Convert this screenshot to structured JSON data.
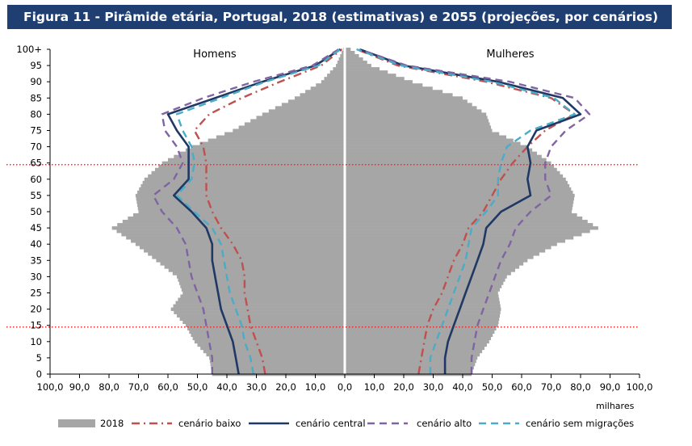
{
  "title": "Figura 11 - Pirâmide etária, Portugal, 2018 (estimativas) e 2055 (projeções, por cenários)",
  "chart_data": {
    "type": "population-pyramid",
    "x_unit": "milhares",
    "xlim": [
      0,
      100
    ],
    "x_tick_labels": [
      "100,0",
      "90,0",
      "80,0",
      "70,0",
      "60,0",
      "50,0",
      "40,0",
      "30,0",
      "20,0",
      "10,0",
      "0,0",
      "10,0",
      "20,0",
      "30,0",
      "40,0",
      "50,0",
      "60,0",
      "70,0",
      "80,0",
      "90,0",
      "100,0"
    ],
    "ylim": [
      0,
      100
    ],
    "y_tick_labels": [
      "0",
      "5",
      "10",
      "15",
      "20",
      "25",
      "30",
      "35",
      "40",
      "45",
      "50",
      "55",
      "60",
      "65",
      "70",
      "75",
      "80",
      "85",
      "90",
      "95",
      "100+"
    ],
    "panel_labels": {
      "left": "Homens",
      "right": "Mulheres"
    },
    "reference_lines_age": [
      14.5,
      64.5
    ],
    "series_2018_bars": {
      "name": "2018",
      "color": "#a6a6a6",
      "ages": [
        0,
        5,
        10,
        15,
        20,
        25,
        30,
        35,
        40,
        45,
        50,
        55,
        60,
        65,
        70,
        75,
        80,
        85,
        90,
        95,
        100
      ],
      "men": [
        45,
        46,
        51,
        54,
        59,
        55,
        57,
        64,
        71,
        79,
        70,
        71,
        68,
        62,
        52,
        38,
        28,
        17,
        8,
        3,
        0.6
      ],
      "women": [
        43,
        45,
        49,
        52,
        53,
        52,
        55,
        62,
        72,
        86,
        77,
        78,
        75,
        70,
        62,
        50,
        48,
        40,
        23,
        9,
        2
      ]
    },
    "series": [
      {
        "name": "cenário baixo",
        "color": "#c0504d",
        "dash": "dashdot",
        "ages": [
          0,
          5,
          10,
          15,
          20,
          25,
          30,
          35,
          40,
          45,
          50,
          55,
          60,
          65,
          70,
          75,
          80,
          85,
          90,
          95,
          100
        ],
        "men": [
          27,
          28,
          30,
          32,
          33,
          34,
          34,
          35,
          38,
          42,
          45,
          47,
          47,
          47,
          48,
          51,
          46,
          35,
          22,
          8,
          1
        ],
        "women": [
          25,
          26,
          27,
          28,
          30,
          33,
          35,
          37,
          40,
          42,
          47,
          50,
          53,
          57,
          62,
          68,
          78,
          70,
          48,
          18,
          4
        ]
      },
      {
        "name": "cenário central",
        "color": "#1f3864",
        "dash": "solid",
        "ages": [
          0,
          5,
          10,
          15,
          20,
          25,
          30,
          35,
          40,
          45,
          50,
          55,
          60,
          65,
          70,
          75,
          80,
          85,
          90,
          95,
          100
        ],
        "men": [
          36,
          37,
          38,
          40,
          42,
          43,
          44,
          45,
          45,
          47,
          52,
          58,
          53,
          53,
          53,
          57,
          60,
          44,
          28,
          10,
          1.5
        ],
        "women": [
          34,
          34,
          35,
          37,
          39,
          41,
          43,
          45,
          47,
          48,
          53,
          63,
          62,
          63,
          62,
          65,
          80,
          74,
          52,
          20,
          5
        ]
      },
      {
        "name": "cenário alto",
        "color": "#8064a2",
        "dash": "dash",
        "ages": [
          0,
          5,
          10,
          15,
          20,
          25,
          30,
          35,
          40,
          45,
          50,
          55,
          60,
          65,
          70,
          75,
          80,
          85,
          90,
          95,
          100
        ],
        "men": [
          45,
          45,
          46,
          47,
          48,
          50,
          52,
          53,
          54,
          57,
          62,
          65,
          58,
          55,
          57,
          61,
          62,
          48,
          31,
          11,
          2
        ],
        "women": [
          43,
          43,
          44,
          45,
          47,
          49,
          51,
          53,
          56,
          58,
          63,
          70,
          68,
          68,
          70,
          75,
          83,
          78,
          56,
          21,
          5
        ]
      },
      {
        "name": "cenário sem migrações",
        "color": "#4bacc6",
        "dash": "dash",
        "ages": [
          0,
          5,
          10,
          15,
          20,
          25,
          30,
          35,
          40,
          45,
          50,
          55,
          60,
          65,
          70,
          75,
          80,
          85,
          90,
          95,
          100
        ],
        "men": [
          31,
          32,
          34,
          35,
          37,
          39,
          40,
          41,
          42,
          45,
          51,
          57,
          52,
          51,
          52,
          55,
          57,
          42,
          27,
          9,
          1.5
        ],
        "women": [
          29,
          29,
          31,
          33,
          35,
          37,
          39,
          41,
          42,
          43,
          48,
          52,
          52,
          53,
          55,
          63,
          78,
          71,
          50,
          19,
          4
        ]
      }
    ],
    "legend": {
      "position": "bottom",
      "entries": [
        "2018",
        "cenário baixo",
        "cenário central",
        "cenário alto",
        "cenário sem migrações"
      ]
    }
  }
}
